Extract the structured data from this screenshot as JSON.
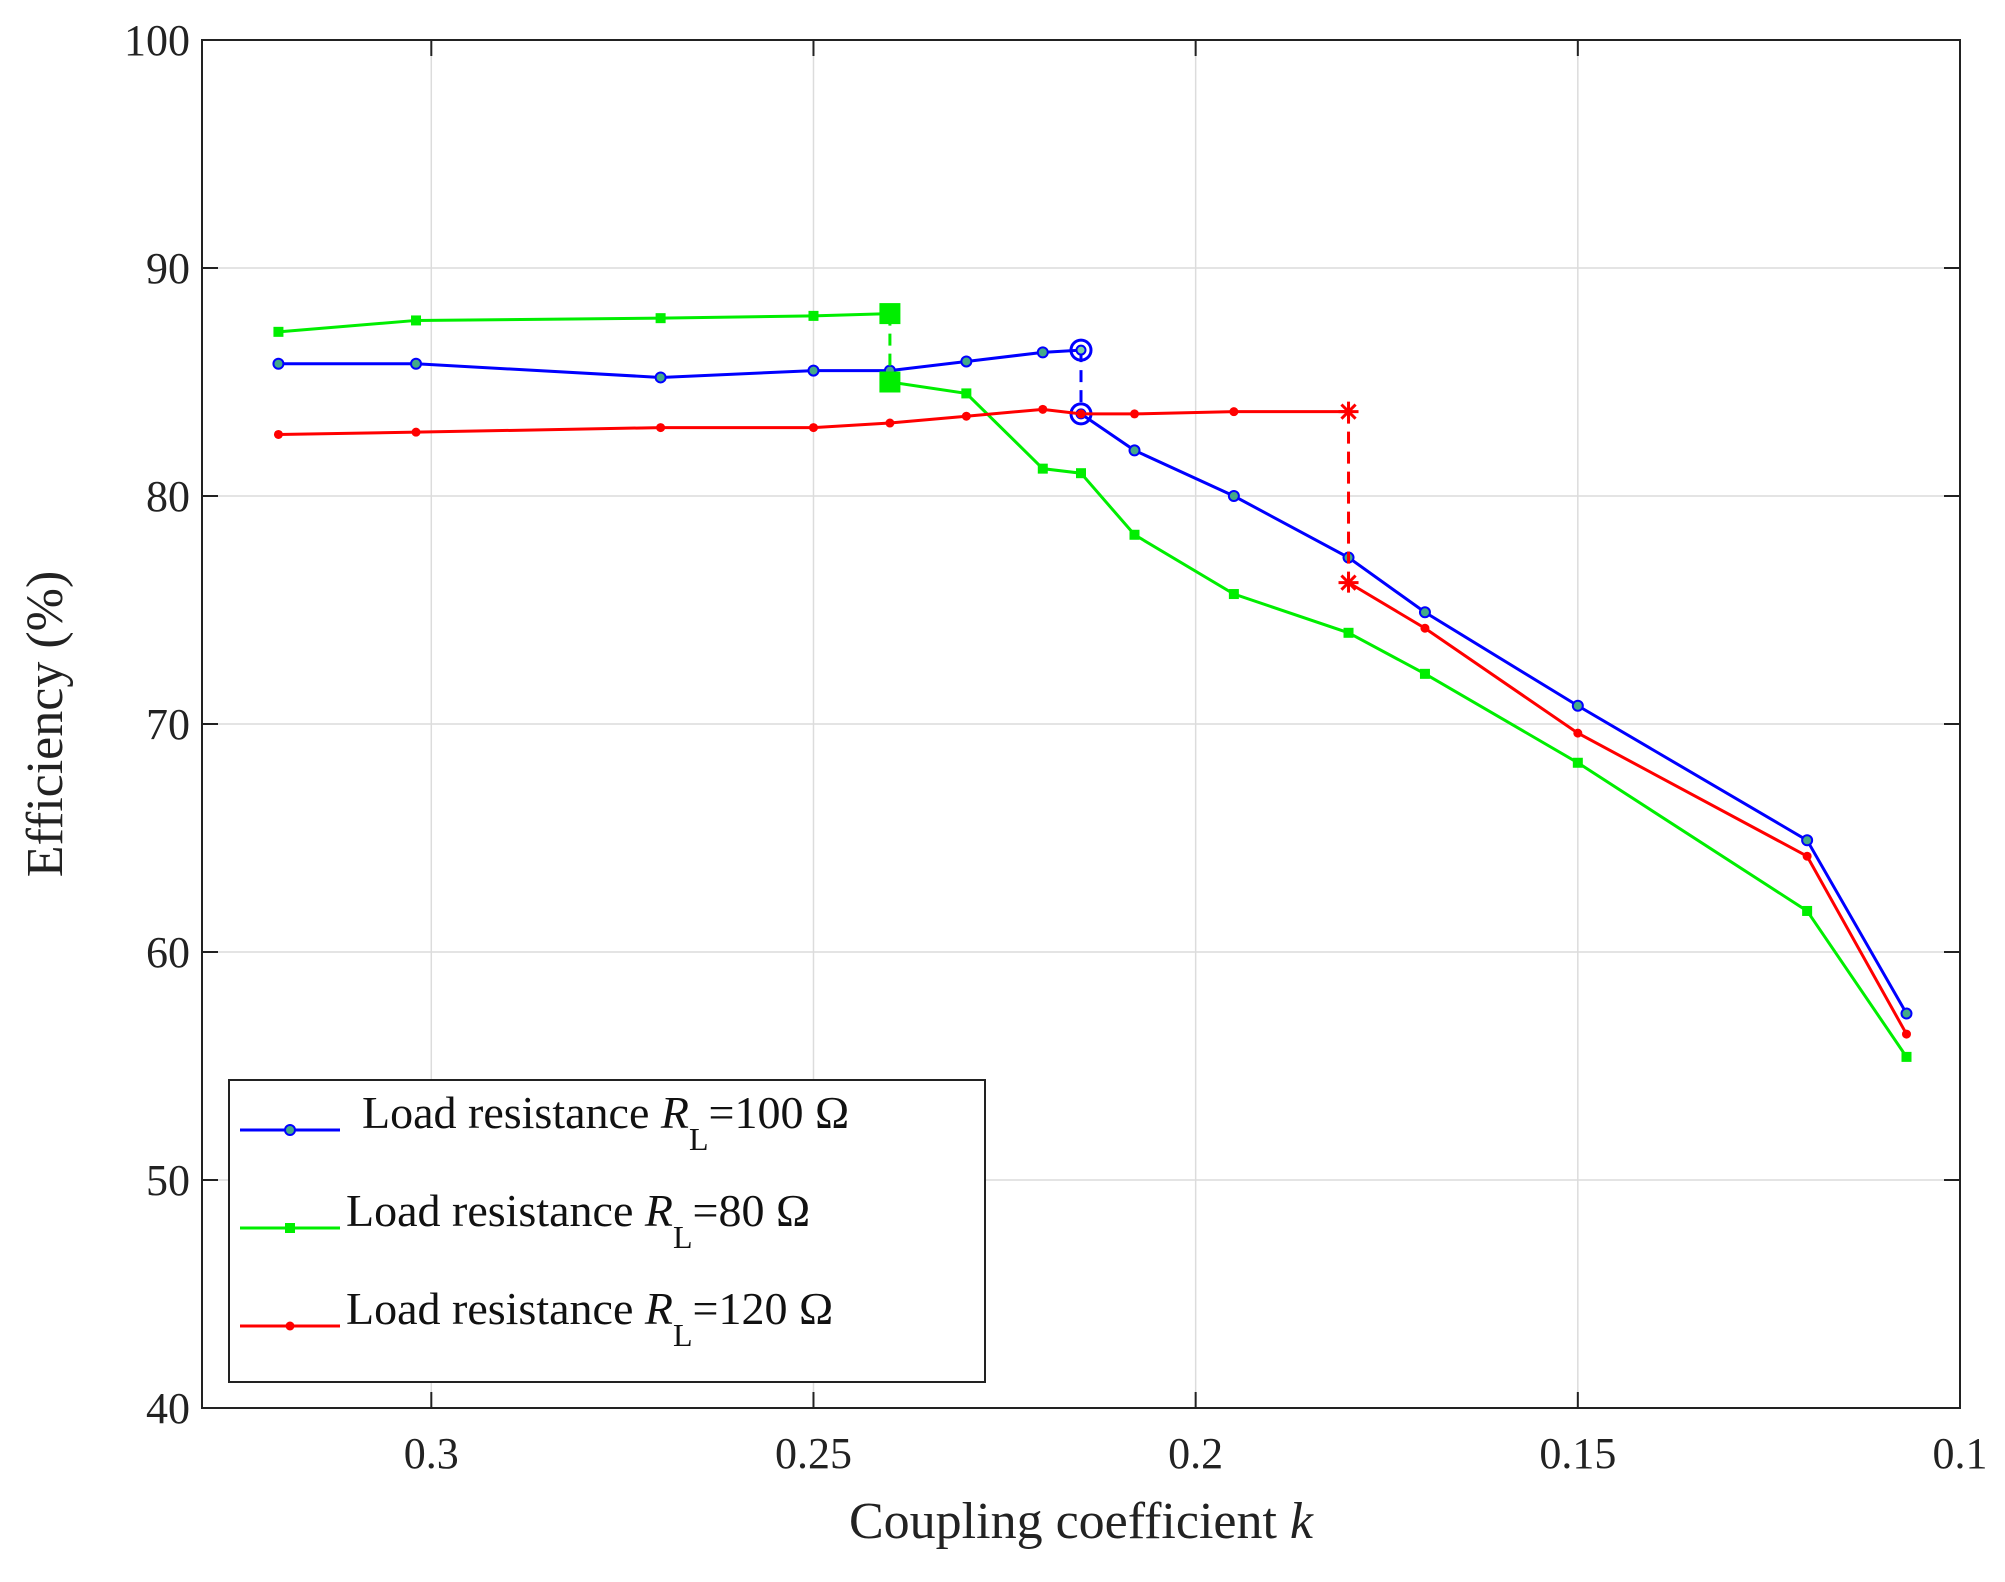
{
  "chart_data": {
    "type": "line",
    "title": "",
    "xlabel": "Coupling coefficient",
    "xlabel_var": "k",
    "ylabel": "Efficiency (%)",
    "xlim": [
      0.33,
      0.1
    ],
    "x_reversed": true,
    "ylim": [
      40,
      100
    ],
    "xticks": [
      0.3,
      0.25,
      0.2,
      0.15,
      0.1
    ],
    "xtick_labels": [
      "0.3",
      "0.25",
      "0.2",
      "0.15",
      "0.1"
    ],
    "yticks": [
      40,
      50,
      60,
      70,
      80,
      90,
      100
    ],
    "ytick_labels": [
      "40",
      "50",
      "60",
      "70",
      "80",
      "90",
      "100"
    ],
    "grid": true,
    "legend_position": "bottom-left",
    "series": [
      {
        "name": "Load resistance",
        "legend_prefix": "Load resistance ",
        "legend_var": "R",
        "legend_sub": "L",
        "legend_suffix": "=100 Ω",
        "color": "#0000ff",
        "marker": "circle",
        "x": [
          0.32,
          0.302,
          0.27,
          0.25,
          0.24,
          0.23,
          0.22,
          0.215
        ],
        "y": [
          85.8,
          85.8,
          85.2,
          85.5,
          85.5,
          85.9,
          86.3,
          86.4
        ],
        "x2": [
          0.215,
          0.208,
          0.195,
          0.18,
          0.17,
          0.15,
          0.12,
          0.107
        ],
        "y2": [
          83.6,
          82.0,
          80.0,
          77.3,
          74.9,
          70.8,
          64.9,
          57.3
        ],
        "jump_x": 0.215,
        "jump_from": 86.4,
        "jump_to": 83.6
      },
      {
        "name": "Load resistance",
        "legend_prefix": "Load resistance ",
        "legend_var": "R",
        "legend_sub": "L",
        "legend_suffix": "=80 Ω",
        "color": "#00ee00",
        "marker": "square",
        "x": [
          0.32,
          0.302,
          0.27,
          0.25,
          0.24
        ],
        "y": [
          87.2,
          87.7,
          87.8,
          87.9,
          88.0
        ],
        "x2": [
          0.24,
          0.23,
          0.22,
          0.215,
          0.208,
          0.195,
          0.18,
          0.17,
          0.15,
          0.12,
          0.107
        ],
        "y2": [
          85.0,
          84.5,
          81.2,
          81.0,
          78.3,
          75.7,
          74.0,
          72.2,
          68.3,
          61.8,
          55.4
        ],
        "jump_x": 0.24,
        "jump_from": 88.0,
        "jump_to": 85.0
      },
      {
        "name": "Load resistance",
        "legend_prefix": "Load resistance ",
        "legend_var": "R",
        "legend_sub": "L",
        "legend_suffix": "=120 Ω",
        "color": "#ff0000",
        "marker": "dot",
        "x": [
          0.32,
          0.302,
          0.27,
          0.25,
          0.24,
          0.23,
          0.22,
          0.215,
          0.208,
          0.195,
          0.18
        ],
        "y": [
          82.7,
          82.8,
          83.0,
          83.0,
          83.2,
          83.5,
          83.8,
          83.6,
          83.6,
          83.7,
          83.7
        ],
        "x2": [
          0.18,
          0.17,
          0.15,
          0.12,
          0.107
        ],
        "y2": [
          76.2,
          74.2,
          69.6,
          64.2,
          56.4
        ],
        "jump_x": 0.18,
        "jump_from": 83.7,
        "jump_to": 76.2
      }
    ]
  }
}
